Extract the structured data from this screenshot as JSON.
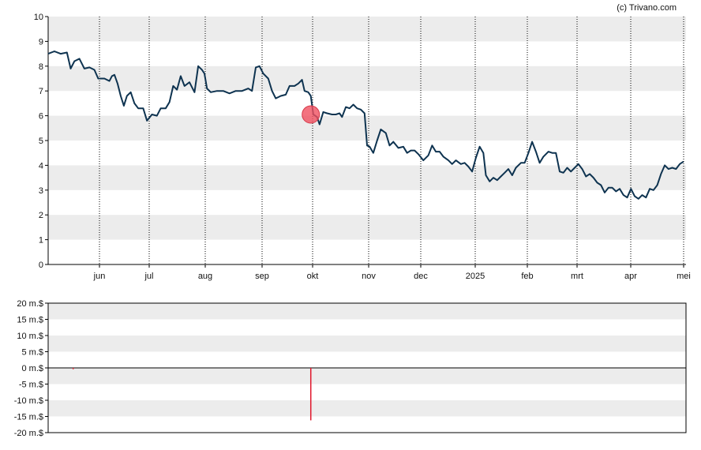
{
  "copyright": "(c) Trivano.com",
  "colors": {
    "line": "#0e3350",
    "band": "#ececec",
    "marker": "#f05060",
    "negative_bar": "#e0152a",
    "axis": "#000000"
  },
  "chart_data": [
    {
      "type": "line",
      "title": "",
      "ylim": [
        0,
        10
      ],
      "y_ticks": [
        "0",
        "1",
        "2",
        "3",
        "4",
        "5",
        "6",
        "7",
        "8",
        "9",
        "10"
      ],
      "x_tick_labels": [
        "jun",
        "jul",
        "aug",
        "sep",
        "okt",
        "nov",
        "dec",
        "2025",
        "feb",
        "mrt",
        "apr",
        "mei"
      ],
      "grid": "vertical dotted lines at month ticks, alternating grey horizontal bands",
      "series": [
        {
          "points": [
            [
              0.0,
              8.5
            ],
            [
              0.5,
              8.6
            ],
            [
              1.0,
              8.5
            ],
            [
              1.5,
              8.55
            ],
            [
              1.8,
              7.9
            ],
            [
              2.1,
              8.2
            ],
            [
              2.5,
              8.3
            ],
            [
              2.9,
              7.9
            ],
            [
              3.3,
              7.95
            ],
            [
              3.7,
              7.85
            ],
            [
              4.0,
              7.5
            ],
            [
              4.5,
              7.5
            ],
            [
              4.9,
              7.4
            ],
            [
              5.1,
              7.6
            ],
            [
              5.3,
              7.65
            ],
            [
              5.55,
              7.3
            ],
            [
              5.8,
              6.8
            ],
            [
              6.05,
              6.4
            ],
            [
              6.3,
              6.8
            ],
            [
              6.6,
              6.95
            ],
            [
              6.9,
              6.5
            ],
            [
              7.2,
              6.3
            ],
            [
              7.6,
              6.3
            ],
            [
              7.9,
              5.8
            ],
            [
              8.3,
              6.05
            ],
            [
              8.7,
              6.0
            ],
            [
              9.0,
              6.3
            ],
            [
              9.4,
              6.3
            ],
            [
              9.7,
              6.55
            ],
            [
              10.0,
              7.2
            ],
            [
              10.3,
              7.05
            ],
            [
              10.6,
              7.6
            ],
            [
              10.9,
              7.2
            ],
            [
              11.3,
              7.35
            ],
            [
              11.7,
              6.95
            ],
            [
              12.0,
              8.0
            ],
            [
              12.3,
              7.85
            ],
            [
              12.5,
              7.7
            ],
            [
              12.7,
              7.1
            ],
            [
              13.0,
              6.95
            ],
            [
              13.5,
              7.0
            ],
            [
              14.0,
              7.0
            ],
            [
              14.5,
              6.9
            ],
            [
              15.0,
              7.0
            ],
            [
              15.5,
              7.0
            ],
            [
              16.0,
              7.1
            ],
            [
              16.3,
              7.0
            ],
            [
              16.6,
              7.95
            ],
            [
              16.9,
              8.0
            ],
            [
              17.2,
              7.7
            ],
            [
              17.6,
              7.5
            ],
            [
              17.9,
              7.0
            ],
            [
              18.2,
              6.7
            ],
            [
              18.6,
              6.8
            ],
            [
              19.0,
              6.85
            ],
            [
              19.3,
              7.2
            ],
            [
              19.7,
              7.2
            ],
            [
              20.0,
              7.3
            ],
            [
              20.3,
              7.45
            ],
            [
              20.5,
              7.0
            ],
            [
              20.8,
              6.95
            ],
            [
              21.0,
              6.8
            ],
            [
              21.2,
              6.05
            ],
            [
              21.5,
              5.95
            ],
            [
              21.7,
              5.65
            ],
            [
              22.0,
              6.15
            ],
            [
              22.3,
              6.1
            ],
            [
              22.7,
              6.05
            ],
            [
              23.0,
              6.05
            ],
            [
              23.3,
              6.1
            ],
            [
              23.5,
              5.95
            ],
            [
              23.8,
              6.35
            ],
            [
              24.1,
              6.3
            ],
            [
              24.4,
              6.45
            ],
            [
              24.7,
              6.3
            ],
            [
              25.0,
              6.25
            ],
            [
              25.3,
              6.1
            ],
            [
              25.5,
              4.8
            ],
            [
              25.7,
              4.75
            ],
            [
              26.0,
              4.5
            ],
            [
              26.3,
              5.0
            ],
            [
              26.6,
              5.45
            ],
            [
              27.0,
              5.3
            ],
            [
              27.3,
              4.8
            ],
            [
              27.6,
              4.95
            ],
            [
              28.0,
              4.7
            ],
            [
              28.4,
              4.75
            ],
            [
              28.7,
              4.5
            ],
            [
              29.0,
              4.6
            ],
            [
              29.3,
              4.6
            ],
            [
              29.6,
              4.45
            ],
            [
              30.0,
              4.2
            ],
            [
              30.4,
              4.4
            ],
            [
              30.7,
              4.8
            ],
            [
              31.0,
              4.55
            ],
            [
              31.3,
              4.55
            ],
            [
              31.6,
              4.35
            ],
            [
              32.0,
              4.2
            ],
            [
              32.3,
              4.05
            ],
            [
              32.6,
              4.2
            ],
            [
              33.0,
              4.05
            ],
            [
              33.3,
              4.1
            ],
            [
              33.6,
              3.95
            ],
            [
              33.9,
              3.75
            ],
            [
              34.2,
              4.3
            ],
            [
              34.5,
              4.75
            ],
            [
              34.8,
              4.5
            ],
            [
              35.0,
              3.6
            ],
            [
              35.3,
              3.35
            ],
            [
              35.6,
              3.5
            ],
            [
              35.9,
              3.4
            ],
            [
              36.2,
              3.55
            ],
            [
              36.5,
              3.7
            ],
            [
              36.8,
              3.85
            ],
            [
              37.1,
              3.6
            ],
            [
              37.4,
              3.9
            ],
            [
              37.8,
              4.1
            ],
            [
              38.1,
              4.1
            ],
            [
              38.4,
              4.5
            ],
            [
              38.7,
              4.95
            ],
            [
              39.0,
              4.55
            ],
            [
              39.3,
              4.1
            ],
            [
              39.6,
              4.35
            ],
            [
              40.0,
              4.55
            ],
            [
              40.3,
              4.5
            ],
            [
              40.6,
              4.5
            ],
            [
              40.9,
              3.75
            ],
            [
              41.2,
              3.7
            ],
            [
              41.5,
              3.9
            ],
            [
              41.8,
              3.75
            ],
            [
              42.1,
              3.9
            ],
            [
              42.4,
              4.05
            ],
            [
              42.7,
              3.85
            ],
            [
              43.0,
              3.55
            ],
            [
              43.3,
              3.65
            ],
            [
              43.6,
              3.5
            ],
            [
              43.9,
              3.3
            ],
            [
              44.2,
              3.2
            ],
            [
              44.5,
              2.9
            ],
            [
              44.8,
              3.1
            ],
            [
              45.1,
              3.1
            ],
            [
              45.4,
              2.95
            ],
            [
              45.7,
              3.05
            ],
            [
              46.0,
              2.8
            ],
            [
              46.3,
              2.7
            ],
            [
              46.6,
              3.05
            ],
            [
              46.9,
              2.75
            ],
            [
              47.2,
              2.65
            ],
            [
              47.5,
              2.8
            ],
            [
              47.8,
              2.7
            ],
            [
              48.1,
              3.05
            ],
            [
              48.4,
              3.0
            ],
            [
              48.7,
              3.2
            ],
            [
              49.0,
              3.65
            ],
            [
              49.3,
              4.0
            ],
            [
              49.6,
              3.85
            ],
            [
              49.9,
              3.9
            ],
            [
              50.2,
              3.85
            ],
            [
              50.5,
              4.05
            ],
            [
              50.8,
              4.15
            ]
          ]
        }
      ],
      "markers": [
        {
          "x": 21.0,
          "y": 6.05
        }
      ]
    },
    {
      "type": "bar",
      "title": "",
      "ylim": [
        -20,
        20
      ],
      "y_ticks": [
        "-20 m.$",
        "-15 m.$",
        "-10 m.$",
        "-5 m.$",
        "0 m.$",
        "5 m.$",
        "10 m.$",
        "15 m.$",
        "20 m.$"
      ],
      "series": [
        {
          "points": [
            [
              2.0,
              -0.4
            ],
            [
              21.0,
              -16.2
            ]
          ]
        }
      ]
    }
  ]
}
